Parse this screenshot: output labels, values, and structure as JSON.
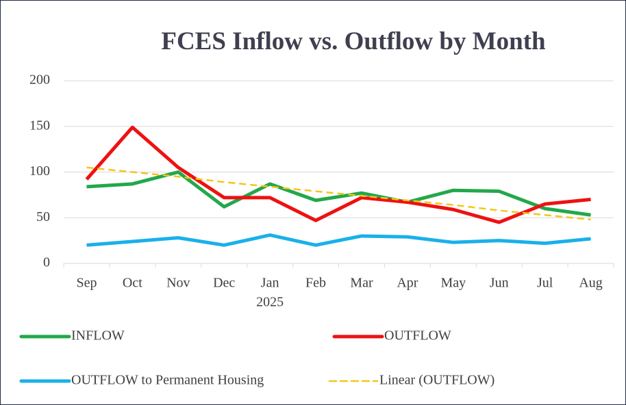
{
  "chart_data": {
    "type": "line",
    "title": "FCES Inflow vs. Outflow by Month",
    "categories": [
      "Sep",
      "Oct",
      "Nov",
      "Dec",
      "Jan",
      "Feb",
      "Mar",
      "Apr",
      "May",
      "Jun",
      "Jul",
      "Aug"
    ],
    "x_group_labels": [
      {
        "label": "2025",
        "at": "Jan"
      }
    ],
    "series": [
      {
        "name": "INFLOW",
        "color": "#22a84a",
        "dash": false,
        "values": [
          84,
          87,
          100,
          62,
          87,
          69,
          77,
          67,
          80,
          79,
          60,
          53
        ]
      },
      {
        "name": "OUTFLOW",
        "color": "#ee1111",
        "dash": false,
        "values": [
          92,
          149,
          105,
          72,
          72,
          47,
          72,
          67,
          59,
          45,
          65,
          70
        ]
      },
      {
        "name": "OUTFLOW to Permanent Housing",
        "color": "#1ab0ea",
        "dash": false,
        "values": [
          20,
          24,
          28,
          20,
          31,
          20,
          30,
          29,
          23,
          25,
          22,
          27
        ]
      },
      {
        "name": "Linear (OUTFLOW)",
        "color": "#f5c518",
        "dash": true,
        "values": [
          105,
          100,
          95,
          89,
          84,
          79,
          74,
          69,
          64,
          58,
          53,
          48
        ]
      }
    ],
    "ylim": [
      0,
      200
    ],
    "yticks": [
      0,
      50,
      100,
      150,
      200
    ],
    "grid": true
  }
}
